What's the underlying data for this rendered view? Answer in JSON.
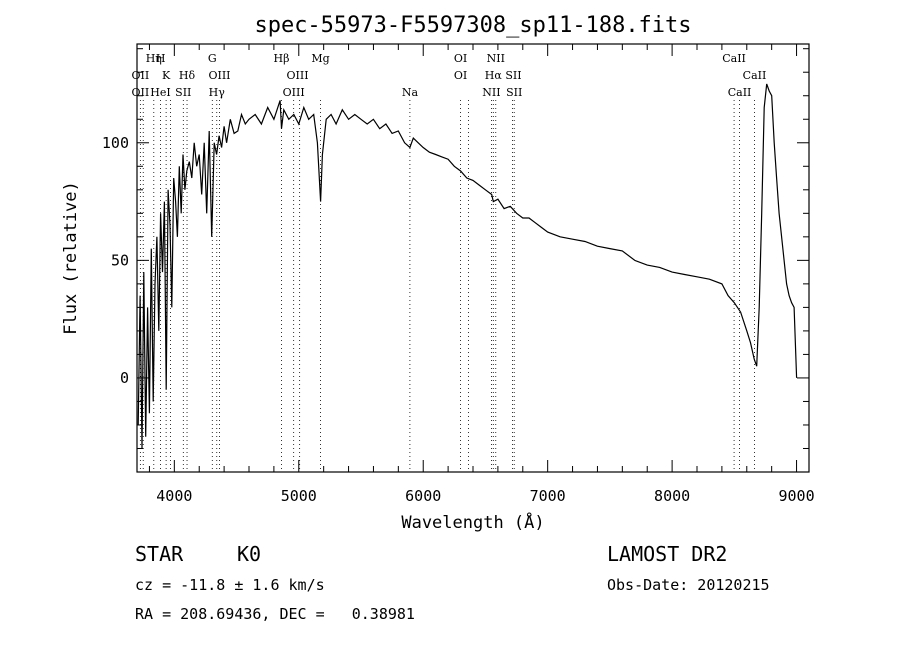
{
  "chart_data": {
    "type": "line",
    "title": "spec-55973-F5597308_sp11-188.fits",
    "xlabel": "Wavelength (Å)",
    "ylabel": "Flux (relative)",
    "xlim": [
      3700,
      9100
    ],
    "ylim": [
      -40,
      142
    ],
    "x_ticks": [
      4000,
      5000,
      6000,
      7000,
      8000,
      9000
    ],
    "y_ticks": [
      0,
      50,
      100
    ],
    "grid": false,
    "series": [
      {
        "values_x": [
          3710,
          3725,
          3740,
          3755,
          3770,
          3785,
          3800,
          3815,
          3830,
          3845,
          3860,
          3875,
          3890,
          3905,
          3920,
          3935,
          3950,
          3965,
          3980,
          3995,
          4010,
          4025,
          4040,
          4055,
          4070,
          4085,
          4100,
          4120,
          4140,
          4160,
          4180,
          4200,
          4220,
          4240,
          4260,
          4280,
          4300,
          4320,
          4340,
          4360,
          4380,
          4400,
          4420,
          4450,
          4480,
          4510,
          4540,
          4570,
          4600,
          4650,
          4700,
          4750,
          4800,
          4850,
          4861,
          4880,
          4920,
          4960,
          5000,
          5040,
          5080,
          5120,
          5150,
          5175,
          5190,
          5220,
          5260,
          5300,
          5350,
          5400,
          5450,
          5500,
          5550,
          5600,
          5650,
          5700,
          5750,
          5800,
          5850,
          5893,
          5920,
          5960,
          6000,
          6050,
          6100,
          6150,
          6200,
          6250,
          6300,
          6350,
          6400,
          6450,
          6500,
          6550,
          6563,
          6600,
          6650,
          6700,
          6750,
          6800,
          6850,
          6900,
          6950,
          7000,
          7100,
          7200,
          7300,
          7400,
          7500,
          7600,
          7700,
          7800,
          7900,
          8000,
          8100,
          8200,
          8300,
          8400,
          8450,
          8500,
          8550,
          8600,
          8630,
          8660,
          8680,
          8700,
          8720,
          8740,
          8760,
          8780,
          8800,
          8820,
          8840,
          8860,
          8880,
          8900,
          8920,
          8940,
          8960,
          8980,
          9000
        ],
        "values_y": [
          -20,
          35,
          -30,
          45,
          -25,
          30,
          -15,
          55,
          -10,
          40,
          60,
          20,
          70,
          45,
          75,
          -5,
          80,
          65,
          30,
          85,
          75,
          60,
          90,
          70,
          95,
          80,
          88,
          92,
          85,
          100,
          90,
          95,
          78,
          100,
          70,
          105,
          60,
          100,
          95,
          103,
          98,
          107,
          100,
          110,
          104,
          105,
          112,
          108,
          110,
          112,
          108,
          115,
          110,
          118,
          106,
          114,
          110,
          112,
          108,
          115,
          110,
          112,
          100,
          75,
          95,
          110,
          112,
          108,
          114,
          110,
          112,
          110,
          108,
          110,
          106,
          108,
          104,
          105,
          100,
          98,
          102,
          100,
          98,
          96,
          95,
          94,
          93,
          90,
          88,
          85,
          84,
          82,
          80,
          78,
          75,
          76,
          72,
          73,
          70,
          68,
          68,
          66,
          64,
          62,
          60,
          59,
          58,
          56,
          55,
          54,
          50,
          48,
          47,
          45,
          44,
          43,
          42,
          40,
          35,
          32,
          28,
          20,
          15,
          8,
          5,
          30,
          70,
          115,
          125,
          122,
          120,
          100,
          85,
          70,
          60,
          50,
          40,
          35,
          32,
          30,
          0
        ]
      }
    ],
    "line_labels": [
      {
        "text": "Hη",
        "x": 3835,
        "row": 0
      },
      {
        "text": "H",
        "x": 3890,
        "row": 0
      },
      {
        "text": "OII",
        "x": 3727,
        "row": 1
      },
      {
        "text": "K",
        "x": 3934,
        "row": 1
      },
      {
        "text": "Hδ",
        "x": 4102,
        "row": 1
      },
      {
        "text": "OII",
        "x": 3727,
        "row": 2
      },
      {
        "text": "HeI",
        "x": 3889,
        "row": 2
      },
      {
        "text": "SII",
        "x": 4072,
        "row": 2
      },
      {
        "text": "G",
        "x": 4305,
        "row": 0
      },
      {
        "text": "OIII",
        "x": 4363,
        "row": 1
      },
      {
        "text": "Hγ",
        "x": 4341,
        "row": 2
      },
      {
        "text": "Hβ",
        "x": 4861,
        "row": 0
      },
      {
        "text": "Mg",
        "x": 5175,
        "row": 0
      },
      {
        "text": "OIII",
        "x": 4990,
        "row": 1
      },
      {
        "text": "OIII",
        "x": 4959,
        "row": 2
      },
      {
        "text": "Na",
        "x": 5893,
        "row": 2
      },
      {
        "text": "OI",
        "x": 6300,
        "row": 0
      },
      {
        "text": "OI",
        "x": 6300,
        "row": 1
      },
      {
        "text": "NII",
        "x": 6583,
        "row": 0
      },
      {
        "text": "Hα",
        "x": 6563,
        "row": 1
      },
      {
        "text": "SII",
        "x": 6725,
        "row": 1
      },
      {
        "text": "NII",
        "x": 6548,
        "row": 2
      },
      {
        "text": "SII",
        "x": 6731,
        "row": 2
      },
      {
        "text": "CaII",
        "x": 8498,
        "row": 0
      },
      {
        "text": "CaII",
        "x": 8662,
        "row": 1
      },
      {
        "text": "CaII",
        "x": 8542,
        "row": 2
      }
    ],
    "line_markers_x": [
      3727,
      3750,
      3835,
      3889,
      3934,
      3970,
      4072,
      4102,
      4305,
      4341,
      4363,
      4861,
      4959,
      5007,
      5175,
      5893,
      6300,
      6363,
      6548,
      6563,
      6583,
      6717,
      6731,
      8498,
      8542,
      8662
    ]
  },
  "footer": {
    "class_label": "STAR",
    "subclass": "K0",
    "survey": "LAMOST DR2",
    "cz": "cz = -11.8 ± 1.6 km/s",
    "obs_date": "Obs-Date: 20120215",
    "coords": "RA = 208.69436, DEC =   0.38981"
  }
}
